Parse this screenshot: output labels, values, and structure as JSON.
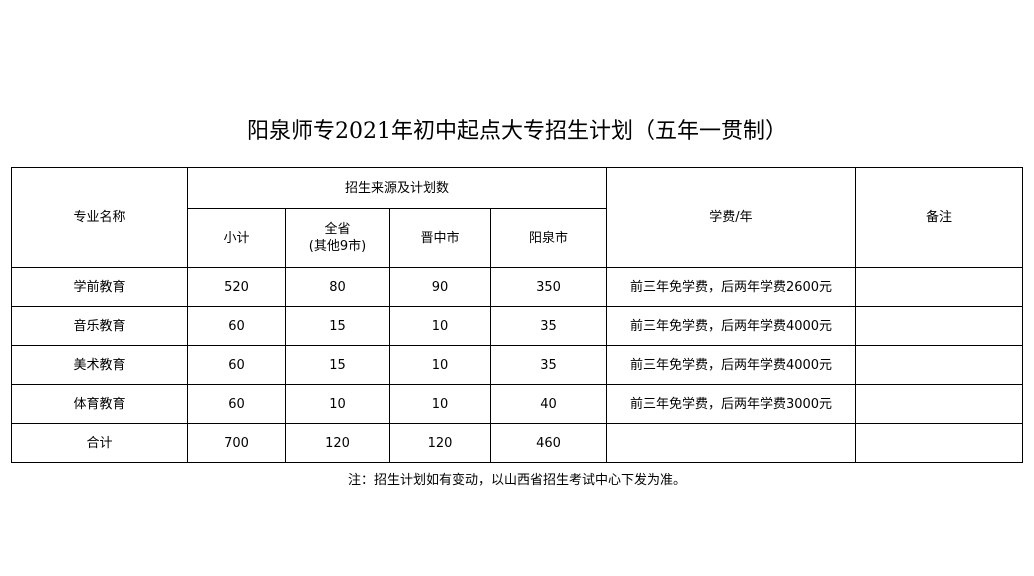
{
  "title": "阳泉师专2021年初中起点大专招生计划（五年一贯制）",
  "table": {
    "headers": {
      "major": "专业名称",
      "source_group": "招生来源及计划数",
      "subtotal": "小计",
      "province": "全省",
      "province_sub": "(其他9市)",
      "jinzhong": "晋中市",
      "yangquan": "阳泉市",
      "tuition": "学费/年",
      "remarks": "备注"
    },
    "rows": [
      {
        "major": "学前教育",
        "subtotal": "520",
        "province": "80",
        "jinzhong": "90",
        "yangquan": "350",
        "tuition": "前三年免学费，后两年学费2600元",
        "remarks": ""
      },
      {
        "major": "音乐教育",
        "subtotal": "60",
        "province": "15",
        "jinzhong": "10",
        "yangquan": "35",
        "tuition": "前三年免学费，后两年学费4000元",
        "remarks": ""
      },
      {
        "major": "美术教育",
        "subtotal": "60",
        "province": "15",
        "jinzhong": "10",
        "yangquan": "35",
        "tuition": "前三年免学费，后两年学费4000元",
        "remarks": ""
      },
      {
        "major": "体育教育",
        "subtotal": "60",
        "province": "10",
        "jinzhong": "10",
        "yangquan": "40",
        "tuition": "前三年免学费，后两年学费3000元",
        "remarks": ""
      },
      {
        "major": "合计",
        "subtotal": "700",
        "province": "120",
        "jinzhong": "120",
        "yangquan": "460",
        "tuition": "",
        "remarks": ""
      }
    ]
  },
  "note": "注：招生计划如有变动，以山西省招生考试中心下发为准。"
}
